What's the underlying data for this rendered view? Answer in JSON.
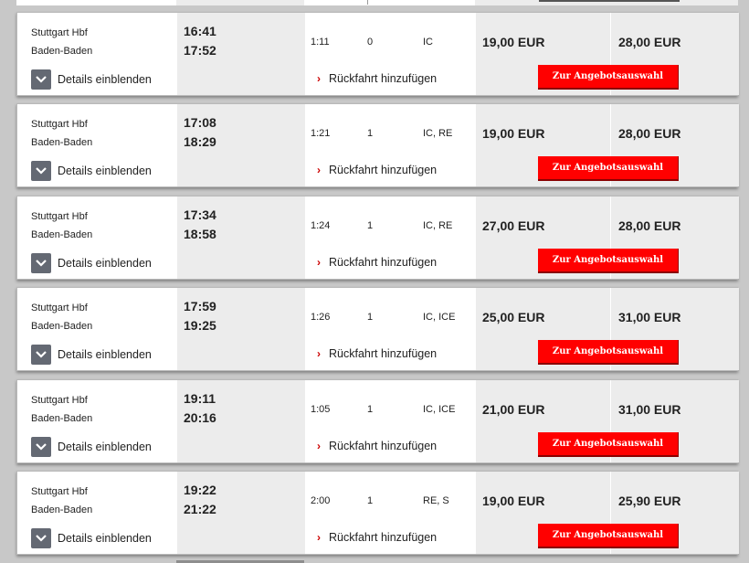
{
  "labels": {
    "details": "Details einblenden",
    "return": "Rückfahrt hinzufügen",
    "offer_button": "Zur Angebotsauswahl"
  },
  "connections": [
    {
      "from": "Stuttgart Hbf",
      "to": "Baden-Baden",
      "dep": "16:41",
      "arr": "17:52",
      "duration": "1:11",
      "changes": "0",
      "products": "IC",
      "price1": "19,00 EUR",
      "price2": "28,00 EUR"
    },
    {
      "from": "Stuttgart Hbf",
      "to": "Baden-Baden",
      "dep": "17:08",
      "arr": "18:29",
      "duration": "1:21",
      "changes": "1",
      "products": "IC, RE",
      "price1": "19,00 EUR",
      "price2": "28,00 EUR"
    },
    {
      "from": "Stuttgart Hbf",
      "to": "Baden-Baden",
      "dep": "17:34",
      "arr": "18:58",
      "duration": "1:24",
      "changes": "1",
      "products": "IC, RE",
      "price1": "27,00 EUR",
      "price2": "28,00 EUR"
    },
    {
      "from": "Stuttgart Hbf",
      "to": "Baden-Baden",
      "dep": "17:59",
      "arr": "19:25",
      "duration": "1:26",
      "changes": "1",
      "products": "IC, ICE",
      "price1": "25,00 EUR",
      "price2": "31,00 EUR"
    },
    {
      "from": "Stuttgart Hbf",
      "to": "Baden-Baden",
      "dep": "19:11",
      "arr": "20:16",
      "duration": "1:05",
      "changes": "1",
      "products": "IC, ICE",
      "price1": "21,00 EUR",
      "price2": "31,00 EUR"
    },
    {
      "from": "Stuttgart Hbf",
      "to": "Baden-Baden",
      "dep": "19:22",
      "arr": "21:22",
      "duration": "2:00",
      "changes": "1",
      "products": "RE, S",
      "price1": "19,00 EUR",
      "price2": "25,90 EUR"
    }
  ],
  "colors": {
    "offer_button": "#ff0000",
    "toggle": "#646973",
    "arrow": "#cc0000"
  },
  "icons": {
    "details_toggle": "chevron-down-icon",
    "return_arrow": "chevron-right-icon"
  }
}
